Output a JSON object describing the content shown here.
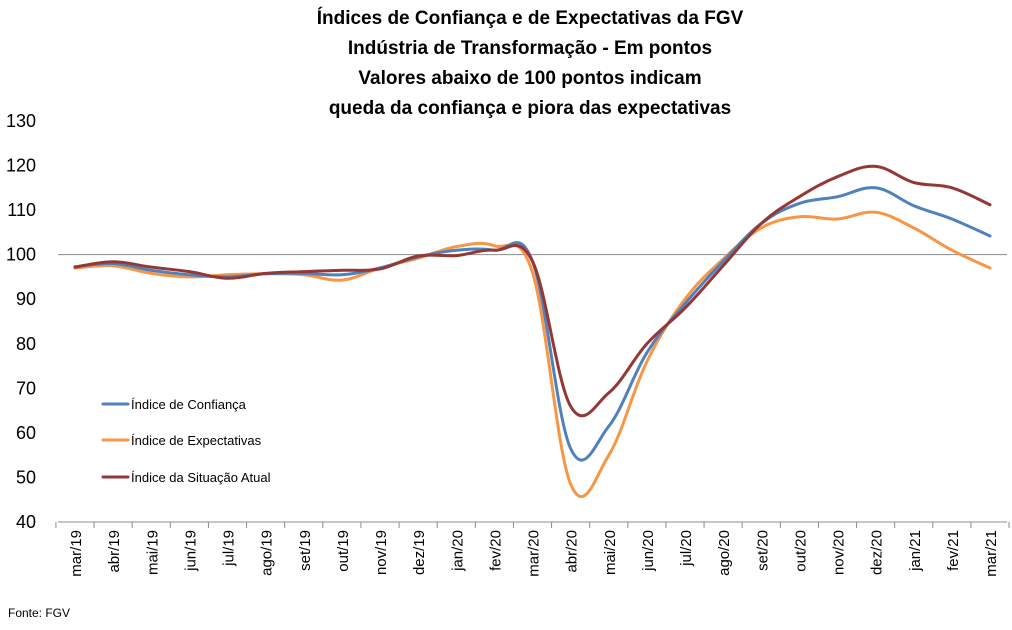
{
  "chart_data": {
    "type": "line",
    "title_lines": [
      "Índices de Confiança e de Expectativas da FGV",
      "Indústria de Transformação - Em pontos",
      "Valores abaixo de 100 pontos indicam",
      "queda da confiança e piora das expectativas"
    ],
    "categories": [
      "mar/19",
      "abr/19",
      "mai/19",
      "jun/19",
      "jul/19",
      "ago/19",
      "set/19",
      "out/19",
      "nov/19",
      "dez/19",
      "jan/20",
      "fev/20",
      "mar/20",
      "abr/20",
      "mai/20",
      "jun/20",
      "jul/20",
      "ago/20",
      "set/20",
      "out/20",
      "nov/20",
      "dez/20",
      "jan/21",
      "fev/21",
      "mar/21"
    ],
    "y_ticks": [
      "40",
      "50",
      "60",
      "70",
      "80",
      "90",
      "100",
      "110",
      "120",
      "130"
    ],
    "ylim": [
      40,
      130
    ],
    "reference_line": 100,
    "series": [
      {
        "name": "Índice de Confiança",
        "color": "#4f81bd",
        "values": [
          97.3,
          98.0,
          96.5,
          95.5,
          95.0,
          95.7,
          95.8,
          95.5,
          97.0,
          99.5,
          101.0,
          101.0,
          98.5,
          56.5,
          61.5,
          78.0,
          89.0,
          98.5,
          107.0,
          111.5,
          113.0,
          115.0,
          111.0,
          108.0,
          104.2
        ]
      },
      {
        "name": "Índice de Expectativas",
        "color": "#f79646",
        "values": [
          97.0,
          97.5,
          95.8,
          95.0,
          95.5,
          95.7,
          95.5,
          94.3,
          97.0,
          99.2,
          101.8,
          102.0,
          96.0,
          48.5,
          55.0,
          76.0,
          90.0,
          99.0,
          106.0,
          108.5,
          108.0,
          109.5,
          106.0,
          101.0,
          97.0
        ]
      },
      {
        "name": "Índice da Situação Atual",
        "color": "#953735",
        "values": [
          97.2,
          98.4,
          97.2,
          96.2,
          94.7,
          95.8,
          96.2,
          96.5,
          96.8,
          99.7,
          99.8,
          101.0,
          98.5,
          66.0,
          69.0,
          80.0,
          88.0,
          97.5,
          107.0,
          113.0,
          117.5,
          119.8,
          116.2,
          115.0,
          111.2
        ]
      }
    ],
    "legend_position": "left-middle",
    "grid": false
  },
  "source": "Fonte: FGV"
}
